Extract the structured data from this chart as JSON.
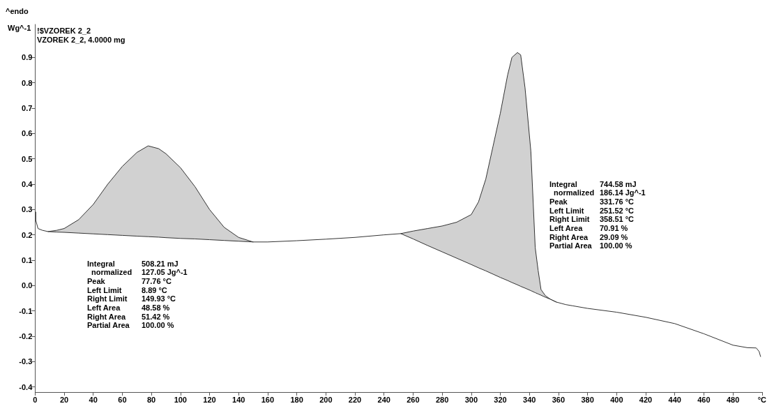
{
  "chart_data": {
    "type": "line",
    "ylabel": "Wg^-1",
    "annotations": [
      "^endo",
      "!$VZOREK 2_2",
      "VZOREK 2_2, 4.0000 mg",
      "Integral\t508.21 mJ\n  normalized\t127.05 Jg^-1\nPeak\t77.76 °C\nLeft Limit\t8.89 °C\nRight Limit\t149.93 °C\nLeft Area\t48.58 %\nRight Area\t51.42 %\nPartial Area\t100.00 %",
      "Integral\t744.58 mJ\n  normalized\t186.14 Jg^-1\nPeak\t331.76 °C\nLeft Limit\t251.52 °C\nRight Limit\t358.51 °C\nLeft Area\t70.91 %\nRight Area\t29.09 %\nPartial Area\t100.00 %"
    ],
    "series": [
      {
        "color": "#333333",
        "x": [
          0.5,
          0.5,
          2,
          5,
          8.89,
          15,
          20,
          30,
          40,
          50,
          60,
          70,
          77.76,
          85,
          90,
          100,
          110,
          120,
          130,
          140,
          149.93,
          160,
          180,
          200,
          220,
          240,
          251.52,
          260,
          270,
          280,
          290,
          300,
          305,
          310,
          315,
          320,
          325,
          328,
          331.76,
          334,
          337,
          341,
          344,
          346,
          348,
          351,
          354.5,
          358.51,
          365,
          370,
          380,
          400,
          420,
          440,
          460,
          480,
          490,
          496,
          498,
          499
        ],
        "values": [
          0.29,
          0.257,
          0.225,
          0.218,
          0.213,
          0.218,
          0.225,
          0.26,
          0.32,
          0.4,
          0.47,
          0.525,
          0.551,
          0.54,
          0.52,
          0.465,
          0.39,
          0.3,
          0.23,
          0.19,
          0.172,
          0.172,
          0.177,
          0.183,
          0.19,
          0.2,
          0.205,
          0.215,
          0.225,
          0.235,
          0.25,
          0.28,
          0.33,
          0.42,
          0.55,
          0.68,
          0.83,
          0.9,
          0.919,
          0.91,
          0.78,
          0.53,
          0.15,
          0.06,
          -0.016,
          -0.04,
          -0.054,
          -0.065,
          -0.075,
          -0.08,
          -0.09,
          -0.105,
          -0.125,
          -0.15,
          -0.19,
          -0.235,
          -0.245,
          -0.246,
          -0.26,
          -0.28
        ]
      },
      {
        "color": "#333333",
        "x": [
          8.89,
          15,
          20,
          30,
          40,
          50,
          60,
          70,
          77.76,
          85,
          90,
          100,
          110,
          120,
          130,
          140,
          149.93
        ],
        "values": [
          0.213,
          0.211,
          0.21,
          0.207,
          0.204,
          0.201,
          0.198,
          0.195,
          0.193,
          0.191,
          0.189,
          0.186,
          0.184,
          0.181,
          0.178,
          0.175,
          0.172
        ],
        "upper": [
          0.213,
          0.218,
          0.225,
          0.26,
          0.32,
          0.4,
          0.47,
          0.525,
          0.551,
          0.54,
          0.52,
          0.465,
          0.39,
          0.3,
          0.23,
          0.19,
          0.172
        ],
        "lower": [
          0.213,
          0.211,
          0.21,
          0.207,
          0.204,
          0.201,
          0.198,
          0.195,
          0.193,
          0.191,
          0.189,
          0.186,
          0.184,
          0.181,
          0.178,
          0.175,
          0.172
        ]
      },
      {
        "color": "#333333",
        "x": [
          251.52,
          260,
          270,
          280,
          290,
          300,
          305,
          310,
          315,
          320,
          325,
          328,
          331.76,
          334,
          337,
          341,
          344,
          346,
          348,
          351,
          354.5,
          358.51
        ],
        "values": [
          0.205,
          0.184,
          0.158,
          0.133,
          0.108,
          0.083,
          0.07,
          0.058,
          0.045,
          0.032,
          0.02,
          0.012,
          0.003,
          -0.003,
          -0.01,
          -0.02,
          -0.028,
          -0.033,
          -0.038,
          -0.046,
          -0.054,
          -0.065
        ],
        "upper": [
          0.205,
          0.215,
          0.225,
          0.235,
          0.25,
          0.28,
          0.33,
          0.42,
          0.55,
          0.68,
          0.83,
          0.9,
          0.919,
          0.91,
          0.78,
          0.53,
          0.15,
          0.06,
          -0.016,
          -0.04,
          -0.054,
          -0.065
        ],
        "lower": [
          0.205,
          0.184,
          0.158,
          0.133,
          0.108,
          0.083,
          0.07,
          0.058,
          0.045,
          0.032,
          0.02,
          0.012,
          0.003,
          -0.003,
          -0.01,
          -0.02,
          -0.028,
          -0.033,
          -0.038,
          -0.046,
          -0.054,
          -0.065
        ]
      }
    ],
    "xlim": [
      0,
      500
    ],
    "xticks": [
      0,
      20,
      40,
      60,
      80,
      100,
      120,
      140,
      160,
      180,
      200,
      220,
      240,
      260,
      280,
      300,
      320,
      340,
      360,
      380,
      400,
      420,
      440,
      460,
      480,
      {
        "value": 500,
        "label": "°C"
      }
    ],
    "ylim": [
      -0.42,
      1.03
    ],
    "yticks": [
      {
        "value": -0.4,
        "label": "-0.4"
      },
      {
        "value": -0.3,
        "label": "-0.3"
      },
      {
        "value": -0.2,
        "label": "-0.2"
      },
      {
        "value": -0.1,
        "label": "-0.1"
      },
      {
        "value": 0,
        "label": "0.0"
      },
      0.1,
      0.2,
      0.3,
      0.4,
      0.5,
      0.6,
      0.7,
      0.8,
      0.9
    ],
    "grid": false,
    "marker": "none",
    "line_style": "solid"
  }
}
